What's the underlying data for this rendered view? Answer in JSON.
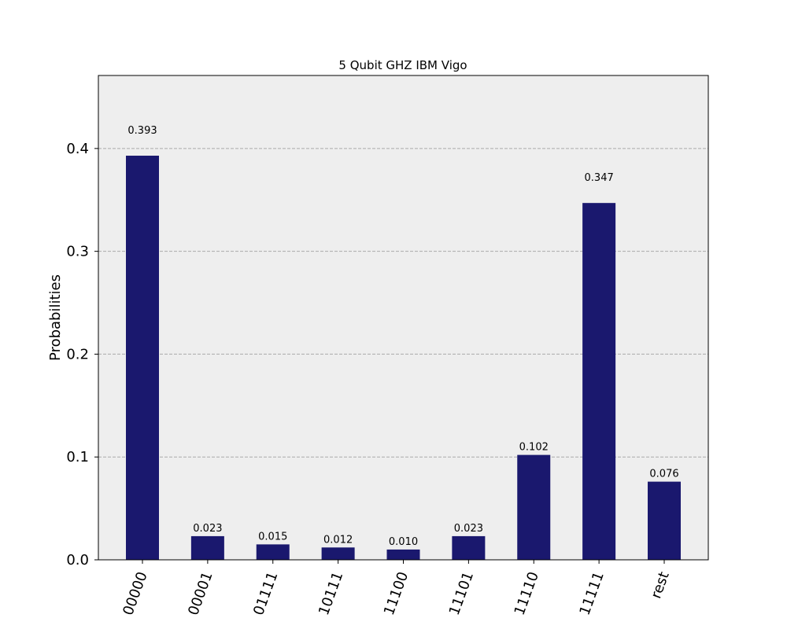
{
  "chart_data": {
    "type": "bar",
    "title": "5 Qubit GHZ IBM Vigo",
    "y_label": "Probabilities",
    "categories": [
      "00000",
      "00001",
      "01111",
      "10111",
      "11100",
      "11101",
      "11110",
      "11111",
      "rest"
    ],
    "values": [
      0.393,
      0.023,
      0.015,
      0.012,
      0.01,
      0.023,
      0.102,
      0.347,
      0.076
    ],
    "value_labels": [
      "0.393",
      "0.023",
      "0.015",
      "0.012",
      "0.010",
      "0.023",
      "0.102",
      "0.347",
      "0.076"
    ],
    "color": "#1a186e",
    "ylim": [
      0,
      0.471
    ],
    "yticks": [
      {
        "value": 0,
        "label": "0.0"
      },
      0.1,
      0.2,
      0.3,
      0.4
    ],
    "grid": true
  }
}
